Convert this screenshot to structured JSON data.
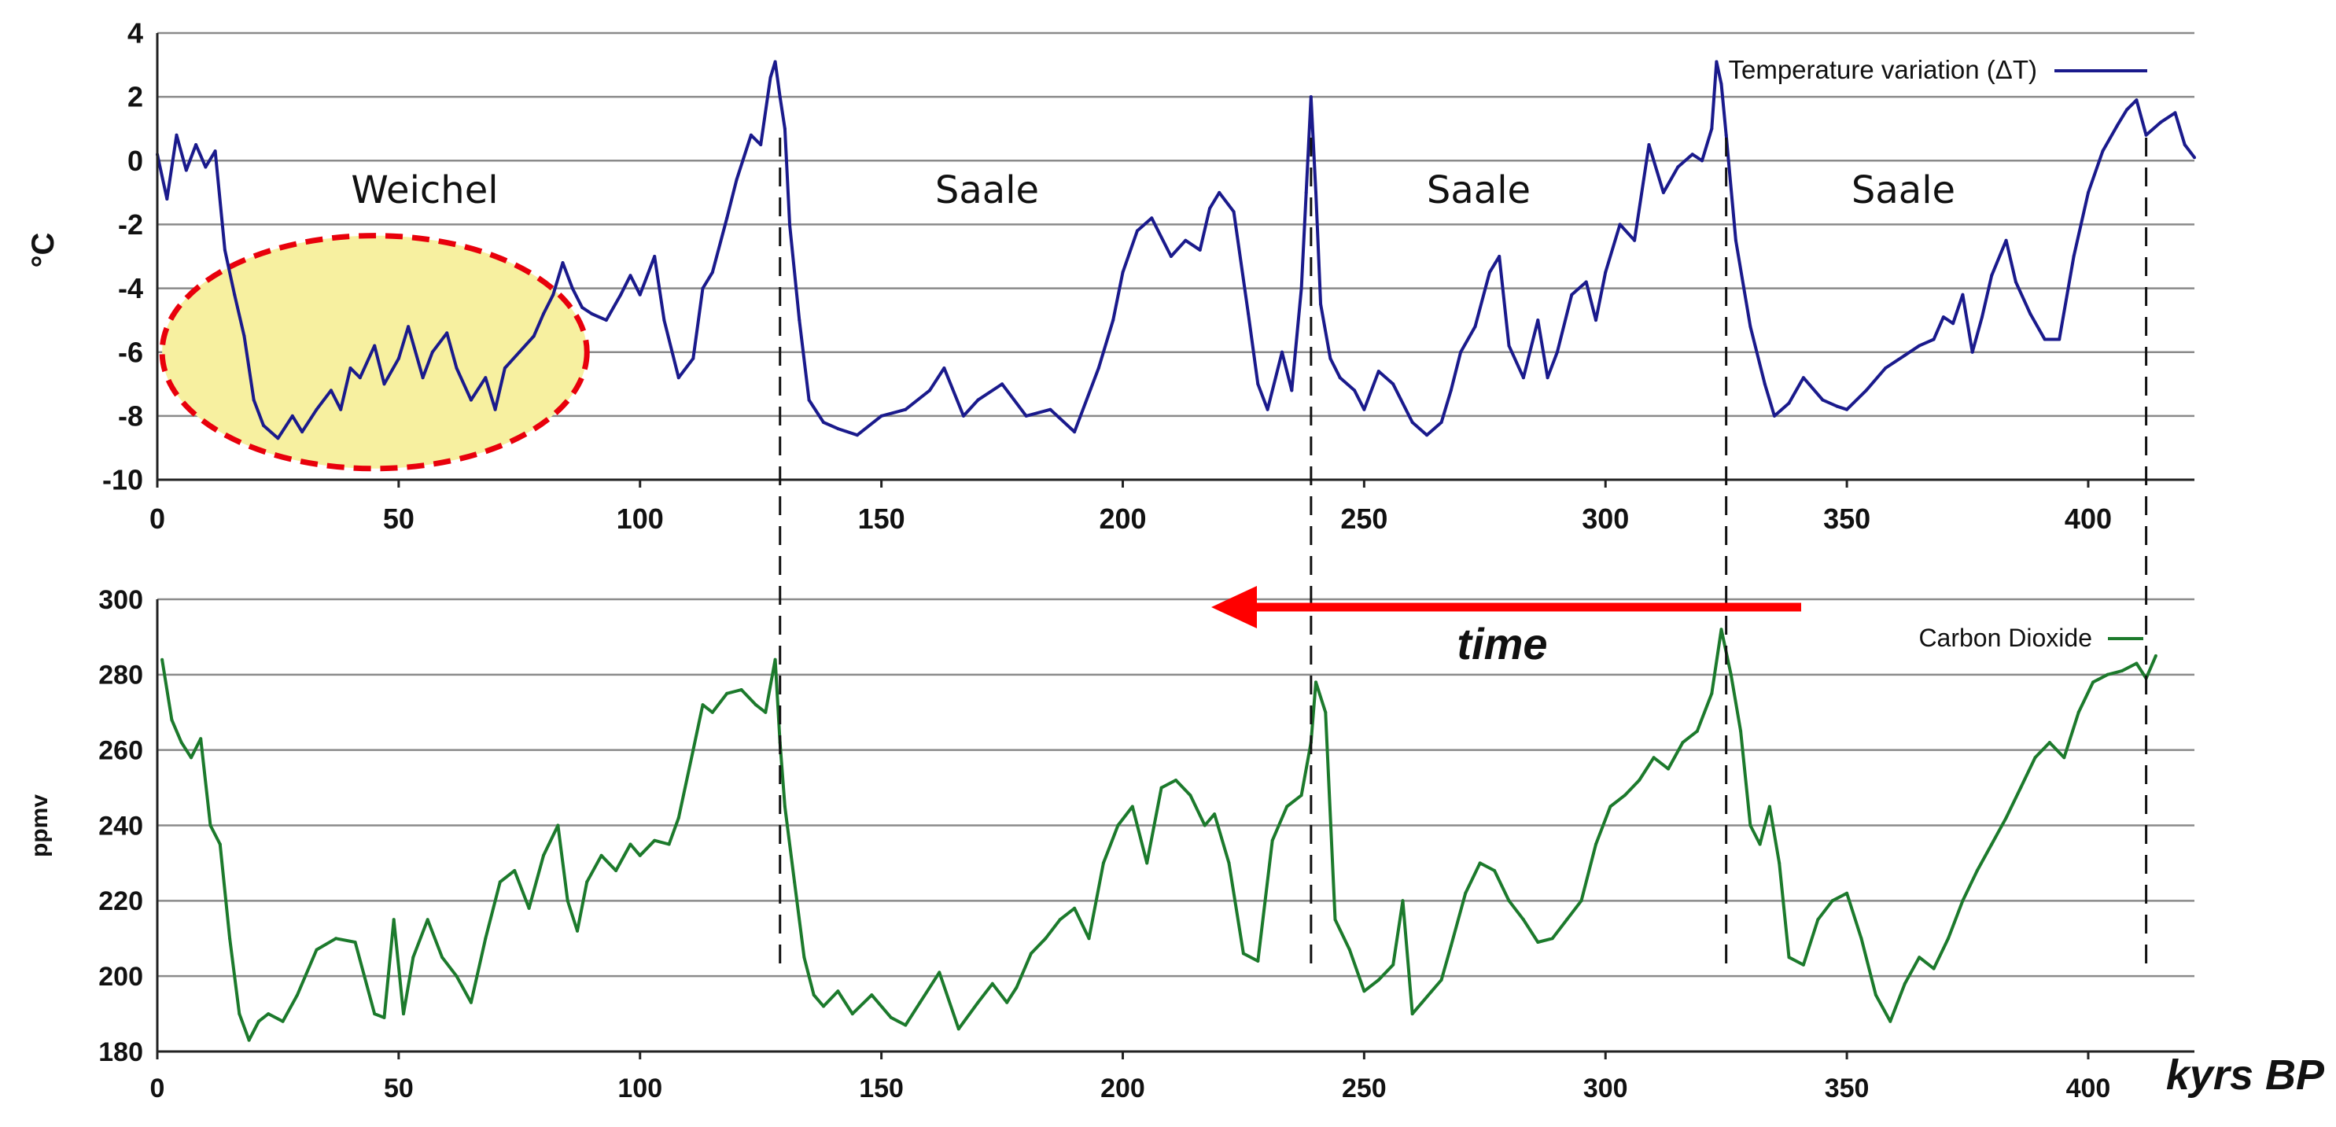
{
  "chart_data": [
    {
      "type": "line",
      "ylabel": "°C",
      "xlim": [
        0,
        422
      ],
      "ylim": [
        -10,
        4
      ],
      "grid": true,
      "yticks": [
        4,
        2,
        0,
        -2,
        -4,
        -6,
        -8,
        -10
      ],
      "xticks": [
        0,
        50,
        100,
        150,
        200,
        250,
        300,
        350,
        400
      ],
      "legend": "top-right",
      "series": [
        {
          "name": "Temperature variation (ΔT)",
          "color": "#1a1a8c",
          "x": [
            0,
            2,
            4,
            6,
            8,
            10,
            12,
            14,
            16,
            18,
            20,
            22,
            25,
            28,
            30,
            33,
            36,
            38,
            40,
            42,
            45,
            47,
            50,
            52,
            55,
            57,
            60,
            62,
            65,
            68,
            70,
            72,
            75,
            78,
            80,
            82,
            84,
            86,
            88,
            90,
            93,
            96,
            98,
            100,
            103,
            105,
            108,
            111,
            113,
            115,
            118,
            120,
            123,
            125,
            127,
            128,
            129,
            130,
            131,
            133,
            135,
            138,
            141,
            145,
            150,
            155,
            160,
            163,
            167,
            170,
            175,
            180,
            185,
            190,
            195,
            198,
            200,
            203,
            206,
            210,
            213,
            216,
            218,
            220,
            223,
            226,
            228,
            230,
            233,
            235,
            237,
            238,
            239,
            240,
            241,
            243,
            245,
            248,
            250,
            253,
            256,
            260,
            263,
            266,
            268,
            270,
            273,
            276,
            278,
            280,
            283,
            286,
            288,
            290,
            293,
            296,
            298,
            300,
            303,
            306,
            309,
            312,
            315,
            318,
            320,
            322,
            323,
            324,
            325,
            327,
            330,
            333,
            335,
            338,
            341,
            345,
            348,
            350,
            354,
            358,
            362,
            365,
            368,
            370,
            372,
            374,
            376,
            378,
            380,
            383,
            385,
            388,
            391,
            394,
            397,
            400,
            403,
            406,
            408,
            410,
            412,
            415,
            418,
            420,
            422
          ],
          "values": [
            0.2,
            -1.2,
            0.8,
            -0.3,
            0.5,
            -0.2,
            0.3,
            -2.8,
            -4.2,
            -5.5,
            -7.5,
            -8.3,
            -8.7,
            -8.0,
            -8.5,
            -7.8,
            -7.2,
            -7.8,
            -6.5,
            -6.8,
            -5.8,
            -7.0,
            -6.2,
            -5.2,
            -6.8,
            -6.0,
            -5.4,
            -6.5,
            -7.5,
            -6.8,
            -7.8,
            -6.5,
            -6.0,
            -5.5,
            -4.8,
            -4.2,
            -3.2,
            -4.0,
            -4.6,
            -4.8,
            -5.0,
            -4.2,
            -3.6,
            -4.2,
            -3.0,
            -5.0,
            -6.8,
            -6.2,
            -4.0,
            -3.5,
            -1.8,
            -0.6,
            0.8,
            0.5,
            2.6,
            3.1,
            2.0,
            1.0,
            -2.0,
            -5.0,
            -7.5,
            -8.2,
            -8.4,
            -8.6,
            -8.0,
            -7.8,
            -7.2,
            -6.5,
            -8.0,
            -7.5,
            -7.0,
            -8.0,
            -7.8,
            -8.5,
            -6.5,
            -5.0,
            -3.5,
            -2.2,
            -1.8,
            -3.0,
            -2.5,
            -2.8,
            -1.5,
            -1.0,
            -1.6,
            -4.8,
            -7.0,
            -7.8,
            -6.0,
            -7.2,
            -4.0,
            -1.0,
            2.0,
            -1.0,
            -4.5,
            -6.2,
            -6.8,
            -7.2,
            -7.8,
            -6.6,
            -7.0,
            -8.2,
            -8.6,
            -8.2,
            -7.2,
            -6.0,
            -5.2,
            -3.5,
            -3.0,
            -5.8,
            -6.8,
            -5.0,
            -6.8,
            -6.0,
            -4.2,
            -3.8,
            -5.0,
            -3.5,
            -2.0,
            -2.5,
            0.5,
            -1.0,
            -0.2,
            0.2,
            0.0,
            1.0,
            3.1,
            2.4,
            0.8,
            -2.5,
            -5.2,
            -7.0,
            -8.0,
            -7.6,
            -6.8,
            -7.5,
            -7.7,
            -7.8,
            -7.2,
            -6.5,
            -6.1,
            -5.8,
            -5.6,
            -4.9,
            -5.1,
            -4.2,
            -6.0,
            -4.9,
            -3.6,
            -2.5,
            -3.8,
            -4.8,
            -5.6,
            -5.6,
            -3.0,
            -1.0,
            0.3,
            1.1,
            1.6,
            1.9,
            0.8,
            1.2,
            1.5,
            0.5,
            0.1
          ]
        }
      ]
    },
    {
      "type": "line",
      "ylabel": "ppmv",
      "xlabel": "kyrs BP",
      "xlim": [
        0,
        422
      ],
      "ylim": [
        180,
        300
      ],
      "grid": true,
      "yticks": [
        300,
        280,
        260,
        240,
        220,
        200,
        180
      ],
      "xticks": [
        0,
        50,
        100,
        150,
        200,
        250,
        300,
        350,
        400
      ],
      "legend": "top-right",
      "series": [
        {
          "name": "Carbon Dioxide",
          "color": "#1c7a2c",
          "x": [
            1,
            3,
            5,
            7,
            9,
            11,
            13,
            15,
            17,
            19,
            21,
            23,
            26,
            29,
            33,
            37,
            41,
            45,
            47,
            49,
            51,
            53,
            56,
            59,
            62,
            65,
            68,
            71,
            74,
            77,
            80,
            83,
            85,
            87,
            89,
            92,
            95,
            98,
            100,
            103,
            106,
            108,
            111,
            113,
            115,
            118,
            121,
            124,
            126,
            128,
            129,
            130,
            132,
            134,
            136,
            138,
            141,
            144,
            148,
            152,
            155,
            158,
            162,
            166,
            170,
            173,
            176,
            178,
            181,
            184,
            187,
            190,
            193,
            196,
            199,
            202,
            205,
            208,
            211,
            214,
            217,
            219,
            222,
            225,
            228,
            231,
            234,
            237,
            239,
            240,
            242,
            244,
            247,
            250,
            253,
            256,
            258,
            260,
            262,
            264,
            266,
            268,
            271,
            274,
            277,
            280,
            283,
            286,
            289,
            292,
            295,
            298,
            301,
            304,
            307,
            310,
            313,
            316,
            319,
            322,
            324,
            326,
            328,
            330,
            332,
            334,
            336,
            338,
            341,
            344,
            347,
            350,
            353,
            356,
            359,
            362,
            365,
            368,
            371,
            374,
            377,
            380,
            383,
            386,
            389,
            392,
            395,
            398,
            401,
            404,
            407,
            410,
            412,
            414
          ],
          "values": [
            284,
            268,
            262,
            258,
            263,
            240,
            235,
            210,
            190,
            183,
            188,
            190,
            188,
            195,
            207,
            210,
            209,
            190,
            189,
            215,
            190,
            205,
            215,
            205,
            200,
            193,
            210,
            225,
            228,
            218,
            232,
            240,
            220,
            212,
            225,
            232,
            228,
            235,
            232,
            236,
            235,
            242,
            260,
            272,
            270,
            275,
            276,
            272,
            270,
            284,
            262,
            245,
            225,
            205,
            195,
            192,
            196,
            190,
            195,
            189,
            187,
            193,
            201,
            186,
            193,
            198,
            193,
            197,
            206,
            210,
            215,
            218,
            210,
            230,
            240,
            245,
            230,
            250,
            252,
            248,
            240,
            243,
            230,
            206,
            204,
            236,
            245,
            248,
            262,
            278,
            270,
            215,
            207,
            196,
            199,
            203,
            220,
            190,
            193,
            196,
            199,
            208,
            222,
            230,
            228,
            220,
            215,
            209,
            210,
            215,
            220,
            235,
            245,
            248,
            252,
            258,
            255,
            262,
            265,
            275,
            292,
            280,
            265,
            240,
            235,
            245,
            230,
            205,
            203,
            215,
            220,
            222,
            210,
            195,
            188,
            198,
            205,
            202,
            210,
            220,
            228,
            235,
            242,
            250,
            258,
            262,
            258,
            270,
            278,
            280,
            281,
            283,
            279,
            285
          ]
        }
      ]
    }
  ],
  "overlay": {
    "period_labels": [
      "Weichel",
      "Saale",
      "Saale",
      "Saale"
    ],
    "time_label": "time",
    "x_unit_label": "kyrs BP",
    "arrow_color": "#ff0000",
    "highlight_fill": "#f7f0a0",
    "highlight_stroke": "#e8000b",
    "divider_positions_kyr": [
      129,
      239,
      325,
      412
    ]
  }
}
